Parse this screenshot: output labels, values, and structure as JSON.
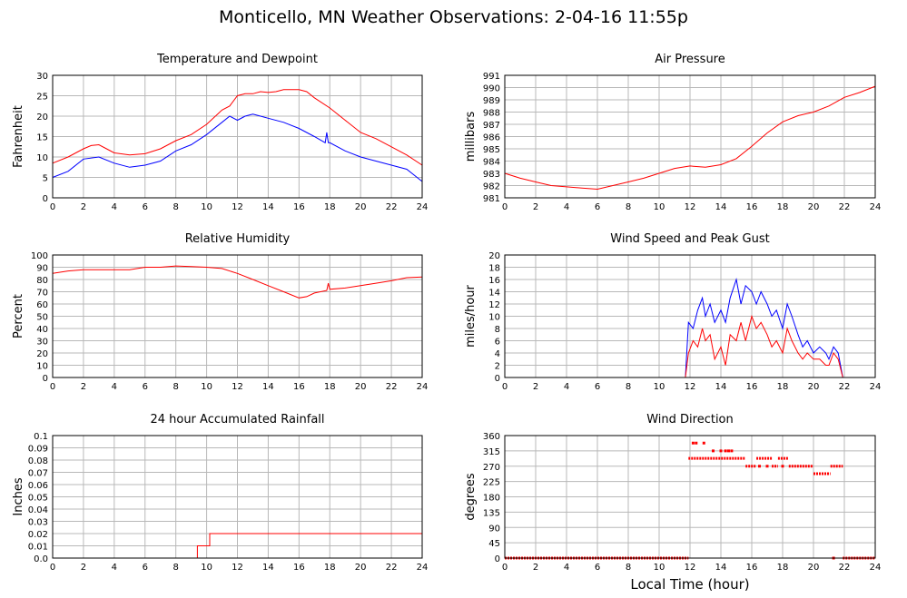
{
  "title": "Monticello, MN Weather Observations: 2-04-16 11:55p",
  "xlabel": "Local Time (hour)",
  "colors": {
    "primary": "#ff0000",
    "secondary": "#0000ff",
    "grid": "#b8b8b8"
  },
  "chart_data": [
    {
      "id": "temp",
      "type": "line",
      "title": "Temperature and Dewpoint",
      "ylabel": "Fahrenheit",
      "xlim": [
        0,
        24
      ],
      "ylim": [
        0,
        30
      ],
      "yticks": [
        0,
        5,
        10,
        15,
        20,
        25,
        30
      ],
      "ytick_labels": [
        "0",
        "5",
        "10",
        "15",
        "20",
        "25",
        "30"
      ],
      "xticks": [
        0,
        2,
        4,
        6,
        8,
        10,
        12,
        14,
        16,
        18,
        20,
        22,
        24
      ],
      "grid": true,
      "series": [
        {
          "color": "#ff0000",
          "points": [
            [
              0,
              8.5
            ],
            [
              1,
              10
            ],
            [
              2,
              12
            ],
            [
              2.5,
              12.8
            ],
            [
              3,
              13
            ],
            [
              3.5,
              12
            ],
            [
              4,
              11
            ],
            [
              5,
              10.5
            ],
            [
              6,
              10.8
            ],
            [
              7,
              12
            ],
            [
              8,
              14
            ],
            [
              9,
              15.5
            ],
            [
              10,
              18
            ],
            [
              11,
              21.5
            ],
            [
              11.5,
              22.5
            ],
            [
              12,
              25
            ],
            [
              12.5,
              25.5
            ],
            [
              13,
              25.5
            ],
            [
              13.5,
              26
            ],
            [
              14,
              25.8
            ],
            [
              14.5,
              26
            ],
            [
              15,
              26.5
            ],
            [
              16,
              26.5
            ],
            [
              16.5,
              26
            ],
            [
              17,
              24.5
            ],
            [
              18,
              22
            ],
            [
              19,
              19
            ],
            [
              20,
              16
            ],
            [
              21,
              14.5
            ],
            [
              22,
              12.5
            ],
            [
              23,
              10.5
            ],
            [
              24,
              8
            ]
          ]
        },
        {
          "color": "#0000ff",
          "points": [
            [
              0,
              5
            ],
            [
              1,
              6.5
            ],
            [
              2,
              9.5
            ],
            [
              3,
              10
            ],
            [
              4,
              8.5
            ],
            [
              5,
              7.5
            ],
            [
              6,
              8
            ],
            [
              7,
              9
            ],
            [
              8,
              11.5
            ],
            [
              9,
              13
            ],
            [
              10,
              15.5
            ],
            [
              11,
              18.5
            ],
            [
              11.5,
              20
            ],
            [
              12,
              19
            ],
            [
              12.5,
              20
            ],
            [
              13,
              20.5
            ],
            [
              13.5,
              20
            ],
            [
              14,
              19.5
            ],
            [
              15,
              18.5
            ],
            [
              16,
              17
            ],
            [
              17,
              15
            ],
            [
              17.7,
              13.5
            ],
            [
              17.8,
              16
            ],
            [
              17.9,
              13.5
            ],
            [
              18,
              13.5
            ],
            [
              19,
              11.5
            ],
            [
              20,
              10
            ],
            [
              21,
              9
            ],
            [
              22,
              8
            ],
            [
              23,
              7
            ],
            [
              24,
              4
            ]
          ]
        }
      ]
    },
    {
      "id": "pressure",
      "type": "line",
      "title": "Air Pressure",
      "ylabel": "millibars",
      "xlim": [
        0,
        24
      ],
      "ylim": [
        981,
        991
      ],
      "yticks": [
        981,
        982,
        983,
        984,
        985,
        986,
        987,
        988,
        989,
        990,
        991
      ],
      "ytick_labels": [
        "981",
        "982",
        "983",
        "984",
        "985",
        "986",
        "987",
        "988",
        "989",
        "990",
        "991"
      ],
      "xticks": [
        0,
        2,
        4,
        6,
        8,
        10,
        12,
        14,
        16,
        18,
        20,
        22,
        24
      ],
      "grid": true,
      "series": [
        {
          "color": "#ff0000",
          "points": [
            [
              0,
              983
            ],
            [
              1,
              982.6
            ],
            [
              2,
              982.3
            ],
            [
              3,
              982
            ],
            [
              4,
              981.9
            ],
            [
              5,
              981.8
            ],
            [
              6,
              981.7
            ],
            [
              7,
              982
            ],
            [
              8,
              982.3
            ],
            [
              9,
              982.6
            ],
            [
              10,
              983
            ],
            [
              11,
              983.4
            ],
            [
              12,
              983.6
            ],
            [
              13,
              983.5
            ],
            [
              14,
              983.7
            ],
            [
              15,
              984.2
            ],
            [
              16,
              985.2
            ],
            [
              17,
              986.3
            ],
            [
              18,
              987.2
            ],
            [
              19,
              987.7
            ],
            [
              20,
              988
            ],
            [
              21,
              988.5
            ],
            [
              22,
              989.2
            ],
            [
              23,
              989.6
            ],
            [
              24,
              990.1
            ]
          ]
        }
      ]
    },
    {
      "id": "humidity",
      "type": "line",
      "title": "Relative Humidity",
      "ylabel": "Percent",
      "xlim": [
        0,
        24
      ],
      "ylim": [
        0,
        100
      ],
      "yticks": [
        0,
        10,
        20,
        30,
        40,
        50,
        60,
        70,
        80,
        90,
        100
      ],
      "ytick_labels": [
        "0",
        "10",
        "20",
        "30",
        "40",
        "50",
        "60",
        "70",
        "80",
        "90",
        "100"
      ],
      "xticks": [
        0,
        2,
        4,
        6,
        8,
        10,
        12,
        14,
        16,
        18,
        20,
        22,
        24
      ],
      "grid": true,
      "series": [
        {
          "color": "#ff0000",
          "points": [
            [
              0,
              85
            ],
            [
              1,
              87
            ],
            [
              2,
              88
            ],
            [
              3,
              88
            ],
            [
              4,
              88
            ],
            [
              5,
              88
            ],
            [
              6,
              90
            ],
            [
              7,
              90
            ],
            [
              8,
              91
            ],
            [
              9,
              90.5
            ],
            [
              10,
              90
            ],
            [
              11,
              89
            ],
            [
              12,
              85
            ],
            [
              13,
              80
            ],
            [
              14,
              75
            ],
            [
              15,
              70
            ],
            [
              16,
              65
            ],
            [
              16.5,
              66
            ],
            [
              17,
              69
            ],
            [
              17.8,
              71
            ],
            [
              17.9,
              77
            ],
            [
              18,
              72
            ],
            [
              19,
              73
            ],
            [
              20,
              75
            ],
            [
              21,
              77
            ],
            [
              22,
              79
            ],
            [
              23,
              81.5
            ],
            [
              24,
              82
            ]
          ]
        }
      ]
    },
    {
      "id": "wind",
      "type": "line",
      "title": "Wind Speed and Peak Gust",
      "ylabel": "miles/hour",
      "xlim": [
        0,
        24
      ],
      "ylim": [
        0,
        20
      ],
      "yticks": [
        0,
        2,
        4,
        6,
        8,
        10,
        12,
        14,
        16,
        18,
        20
      ],
      "ytick_labels": [
        "0",
        "2",
        "4",
        "6",
        "8",
        "10",
        "12",
        "14",
        "16",
        "18",
        "20"
      ],
      "xticks": [
        0,
        2,
        4,
        6,
        8,
        10,
        12,
        14,
        16,
        18,
        20,
        22,
        24
      ],
      "grid": true,
      "series": [
        {
          "color": "#0000ff",
          "points": [
            [
              0,
              0
            ],
            [
              11.7,
              0
            ],
            [
              11.9,
              9
            ],
            [
              12.2,
              8
            ],
            [
              12.5,
              11
            ],
            [
              12.8,
              13
            ],
            [
              13,
              10
            ],
            [
              13.3,
              12
            ],
            [
              13.6,
              9
            ],
            [
              14,
              11
            ],
            [
              14.3,
              9
            ],
            [
              14.6,
              13
            ],
            [
              15,
              16
            ],
            [
              15.3,
              12
            ],
            [
              15.6,
              15
            ],
            [
              16,
              14
            ],
            [
              16.3,
              12
            ],
            [
              16.6,
              14
            ],
            [
              17,
              12
            ],
            [
              17.3,
              10
            ],
            [
              17.6,
              11
            ],
            [
              18,
              8
            ],
            [
              18.3,
              12
            ],
            [
              18.6,
              10
            ],
            [
              19,
              7
            ],
            [
              19.3,
              5
            ],
            [
              19.6,
              6
            ],
            [
              20,
              4
            ],
            [
              20.4,
              5
            ],
            [
              20.8,
              4
            ],
            [
              21,
              3
            ],
            [
              21.3,
              5
            ],
            [
              21.6,
              4
            ],
            [
              21.9,
              0
            ],
            [
              24,
              0
            ]
          ]
        },
        {
          "color": "#ff0000",
          "points": [
            [
              0,
              0
            ],
            [
              11.7,
              0
            ],
            [
              11.9,
              4
            ],
            [
              12.2,
              6
            ],
            [
              12.5,
              5
            ],
            [
              12.8,
              8
            ],
            [
              13,
              6
            ],
            [
              13.3,
              7
            ],
            [
              13.6,
              3
            ],
            [
              14,
              5
            ],
            [
              14.3,
              2
            ],
            [
              14.6,
              7
            ],
            [
              15,
              6
            ],
            [
              15.3,
              9
            ],
            [
              15.6,
              6
            ],
            [
              16,
              10
            ],
            [
              16.3,
              8
            ],
            [
              16.6,
              9
            ],
            [
              17,
              7
            ],
            [
              17.3,
              5
            ],
            [
              17.6,
              6
            ],
            [
              18,
              4
            ],
            [
              18.3,
              8
            ],
            [
              18.6,
              6
            ],
            [
              19,
              4
            ],
            [
              19.3,
              3
            ],
            [
              19.6,
              4
            ],
            [
              20,
              3
            ],
            [
              20.4,
              3
            ],
            [
              20.8,
              2
            ],
            [
              21,
              2
            ],
            [
              21.3,
              4
            ],
            [
              21.6,
              3
            ],
            [
              21.9,
              0
            ],
            [
              24,
              0
            ]
          ]
        }
      ]
    },
    {
      "id": "rain",
      "type": "line",
      "title": "24 hour Accumulated Rainfall",
      "ylabel": "Inches",
      "xlim": [
        0,
        24
      ],
      "ylim": [
        0,
        0.1
      ],
      "yticks": [
        0,
        0.01,
        0.02,
        0.03,
        0.04,
        0.05,
        0.06,
        0.07,
        0.08,
        0.09,
        0.1
      ],
      "ytick_labels": [
        "0.0",
        "0.01",
        "0.02",
        "0.03",
        "0.04",
        "0.05",
        "0.06",
        "0.07",
        "0.08",
        "0.09",
        "0.1"
      ],
      "xticks": [
        0,
        2,
        4,
        6,
        8,
        10,
        12,
        14,
        16,
        18,
        20,
        22,
        24
      ],
      "grid": true,
      "series": [
        {
          "color": "#ff0000",
          "points": [
            [
              0,
              0
            ],
            [
              9.4,
              0
            ],
            [
              9.4,
              0.01
            ],
            [
              10.2,
              0.01
            ],
            [
              10.2,
              0.02
            ],
            [
              24,
              0.02
            ]
          ]
        }
      ]
    },
    {
      "id": "direction",
      "type": "scatter",
      "title": "Wind Direction",
      "ylabel": "degrees",
      "xlim": [
        0,
        24
      ],
      "ylim": [
        0,
        360
      ],
      "yticks": [
        0,
        45,
        90,
        135,
        180,
        225,
        270,
        315,
        360
      ],
      "ytick_labels": [
        "0",
        "45",
        "90",
        "135",
        "180",
        "225",
        "270",
        "315",
        "360"
      ],
      "xticks": [
        0,
        2,
        4,
        6,
        8,
        10,
        12,
        14,
        16,
        18,
        20,
        22,
        24
      ],
      "grid": true,
      "series": [
        {
          "color": "#ff0000",
          "segments": [
            [
              0,
              11.9,
              0
            ],
            [
              11.9,
              15.6,
              293
            ],
            [
              15.6,
              16.3,
              270
            ],
            [
              16.3,
              17.3,
              293
            ],
            [
              17.3,
              17.7,
              270
            ],
            [
              17.7,
              18.4,
              293
            ],
            [
              18.4,
              20,
              270
            ],
            [
              20,
              21.1,
              248
            ],
            [
              21.1,
              21.9,
              270
            ],
            [
              21.9,
              24,
              0
            ]
          ],
          "points": [
            [
              12.2,
              338
            ],
            [
              12.4,
              338
            ],
            [
              12.9,
              338
            ],
            [
              13.5,
              315
            ],
            [
              14,
              315
            ],
            [
              14.3,
              315
            ],
            [
              14.5,
              315
            ],
            [
              14.7,
              315
            ],
            [
              16.5,
              270
            ],
            [
              17,
              270
            ],
            [
              18,
              270
            ],
            [
              21.3,
              0
            ]
          ]
        }
      ]
    }
  ]
}
